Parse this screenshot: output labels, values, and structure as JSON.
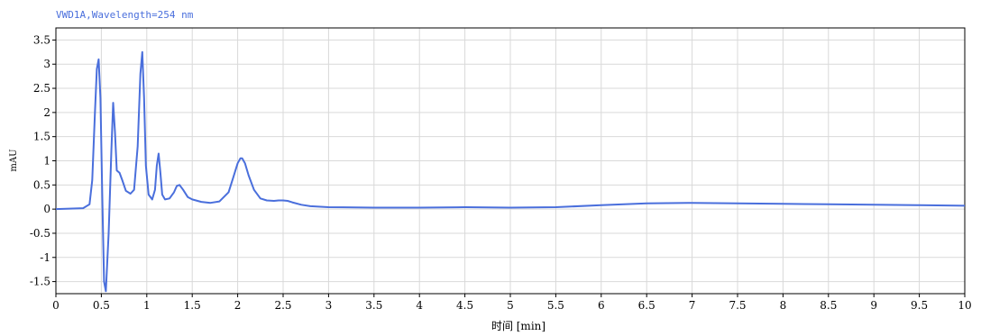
{
  "chart_data": {
    "type": "line",
    "title": "VWD1A,Wavelength=254 nm",
    "xlabel": "时间 [min]",
    "ylabel": "mAU",
    "xlim": [
      0,
      10
    ],
    "ylim": [
      -1.75,
      3.75
    ],
    "x_ticks": [
      0,
      0.5,
      1,
      1.5,
      2,
      2.5,
      3,
      3.5,
      4,
      4.5,
      5,
      5.5,
      6,
      6.5,
      7,
      7.5,
      8,
      8.5,
      9,
      9.5,
      10
    ],
    "x_tick_labels": [
      "0",
      "0.5",
      "1",
      "1.5",
      "2",
      "2.5",
      "3",
      "3.5",
      "4",
      "4.5",
      "5",
      "5.5",
      "6",
      "6.5",
      "7",
      "7.5",
      "8",
      "8.5",
      "9",
      "9.5",
      "10"
    ],
    "y_ticks": [
      -1.5,
      -1,
      -0.5,
      0,
      0.5,
      1,
      1.5,
      2,
      2.5,
      3,
      3.5
    ],
    "y_tick_labels": [
      "-1.5",
      "-1",
      "-0.5",
      "0",
      "0.5",
      "1",
      "1.5",
      "2",
      "2.5",
      "3",
      "3.5"
    ],
    "grid": true,
    "colors": {
      "line": "#4a6fdc",
      "title": "#4a6fdc",
      "grid": "#d9d9d9",
      "axis": "#000000"
    },
    "series": [
      {
        "x": [
          0,
          0.3,
          0.37,
          0.4,
          0.43,
          0.45,
          0.47,
          0.49,
          0.51,
          0.53,
          0.55,
          0.58,
          0.61,
          0.63,
          0.65,
          0.67,
          0.7,
          0.73,
          0.77,
          0.82,
          0.86,
          0.9,
          0.93,
          0.95,
          0.97,
          0.99,
          1.02,
          1.06,
          1.09,
          1.11,
          1.13,
          1.15,
          1.17,
          1.2,
          1.25,
          1.3,
          1.33,
          1.36,
          1.4,
          1.45,
          1.5,
          1.6,
          1.7,
          1.8,
          1.9,
          1.95,
          2.0,
          2.03,
          2.05,
          2.08,
          2.12,
          2.18,
          2.25,
          2.32,
          2.4,
          2.45,
          2.5,
          2.55,
          2.6,
          2.7,
          2.8,
          3.0,
          3.5,
          4.0,
          4.5,
          5.0,
          5.5,
          6.0,
          6.5,
          7.0,
          7.5,
          8.0,
          8.5,
          9.0,
          9.5,
          10.0
        ],
        "y": [
          0,
          0.02,
          0.1,
          0.6,
          2.0,
          2.9,
          3.1,
          2.3,
          0.3,
          -1.5,
          -1.7,
          -0.5,
          1.2,
          2.2,
          1.6,
          0.8,
          0.75,
          0.6,
          0.38,
          0.32,
          0.4,
          1.3,
          2.8,
          3.25,
          2.3,
          0.9,
          0.3,
          0.2,
          0.4,
          0.9,
          1.15,
          0.75,
          0.3,
          0.2,
          0.22,
          0.35,
          0.48,
          0.5,
          0.4,
          0.25,
          0.2,
          0.15,
          0.13,
          0.16,
          0.35,
          0.65,
          0.95,
          1.05,
          1.05,
          0.95,
          0.7,
          0.4,
          0.22,
          0.18,
          0.17,
          0.18,
          0.18,
          0.17,
          0.14,
          0.09,
          0.06,
          0.04,
          0.03,
          0.03,
          0.04,
          0.03,
          0.04,
          0.08,
          0.12,
          0.13,
          0.12,
          0.11,
          0.1,
          0.09,
          0.08,
          0.07
        ]
      }
    ]
  }
}
